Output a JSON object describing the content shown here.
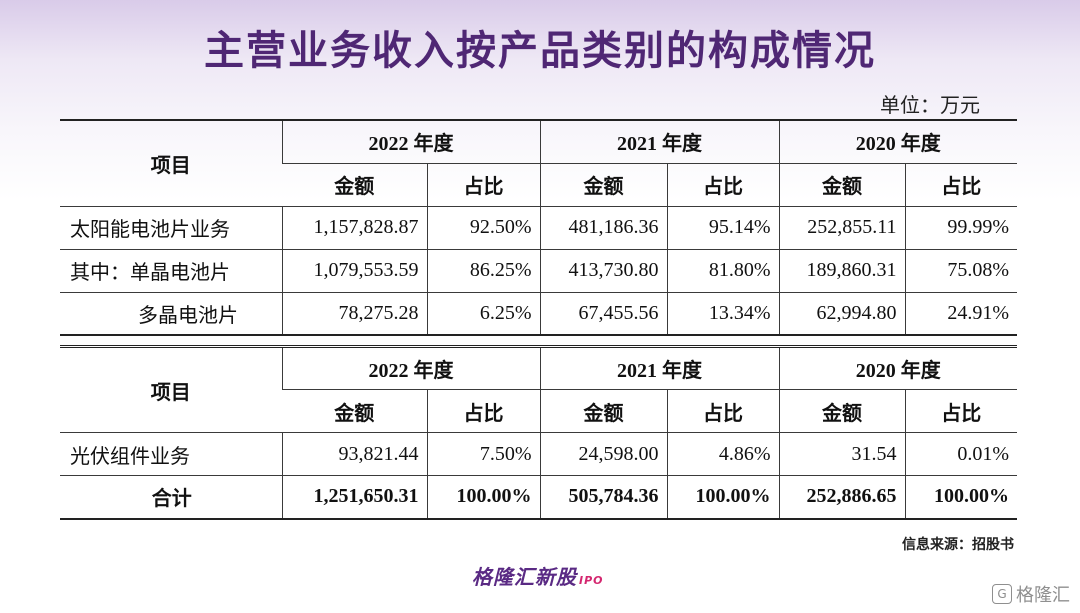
{
  "title": "主营业务收入按产品类别的构成情况",
  "unit": "单位：万元",
  "years": [
    "2022 年度",
    "2021 年度",
    "2020 年度"
  ],
  "col_item": "项目",
  "col_amount": "金额",
  "col_ratio": "占比",
  "table1": {
    "rows": [
      {
        "label": "太阳能电池片业务",
        "values": [
          "1,157,828.87",
          "92.50%",
          "481,186.36",
          "95.14%",
          "252,855.11",
          "99.99%"
        ]
      },
      {
        "label": "其中：单晶电池片",
        "values": [
          "1,079,553.59",
          "86.25%",
          "413,730.80",
          "81.80%",
          "189,860.31",
          "75.08%"
        ]
      },
      {
        "label": "多晶电池片",
        "values": [
          "78,275.28",
          "6.25%",
          "67,455.56",
          "13.34%",
          "62,994.80",
          "24.91%"
        ]
      }
    ]
  },
  "table2": {
    "rows": [
      {
        "label": "光伏组件业务",
        "values": [
          "93,821.44",
          "7.50%",
          "24,598.00",
          "4.86%",
          "31.54",
          "0.01%"
        ]
      }
    ],
    "total": {
      "label": "合计",
      "values": [
        "1,251,650.31",
        "100.00%",
        "505,784.36",
        "100.00%",
        "252,886.65",
        "100.00%"
      ]
    }
  },
  "source": "信息来源：招股书",
  "brand": {
    "name": "格隆汇新股",
    "sub": "IPO"
  },
  "watermark": {
    "icon": "G",
    "text": "格隆汇"
  }
}
